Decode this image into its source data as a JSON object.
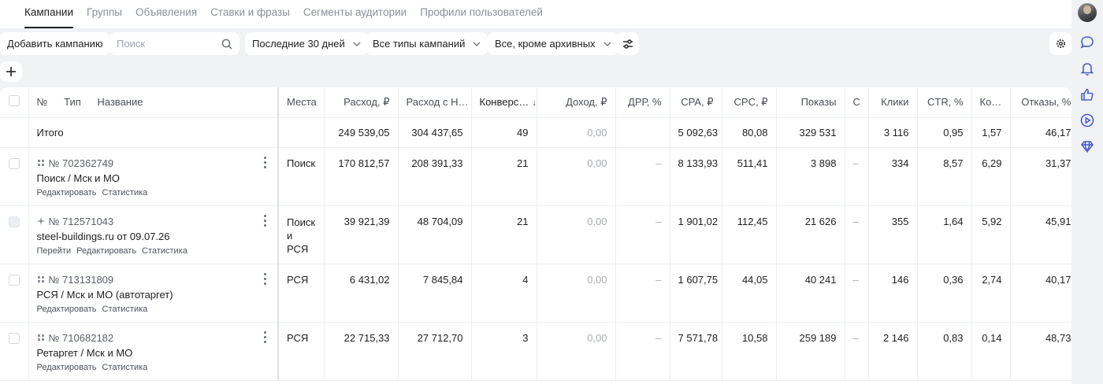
{
  "tabs": [
    {
      "label": "Кампании",
      "active": true
    },
    {
      "label": "Группы",
      "active": false
    },
    {
      "label": "Объявления",
      "active": false
    },
    {
      "label": "Ставки и фразы",
      "active": false
    },
    {
      "label": "Сегменты аудитории",
      "active": false
    },
    {
      "label": "Профили пользователей",
      "active": false
    }
  ],
  "toolbar": {
    "add_campaign": "Добавить кампанию",
    "search_placeholder": "Поиск",
    "period": "Последние 30 дней",
    "campaign_types": "Все типы кампаний",
    "archive_filter": "Все, кроме архивных"
  },
  "columns": {
    "number": "№",
    "type": "Тип",
    "name": "Название",
    "places": "Места",
    "spend": "Расход, ₽",
    "spend_vat": "Расход с Н…",
    "conversions": "Конверс…",
    "revenue": "Доход, ₽",
    "drr": "ДРР, %",
    "cpa": "CPA, ₽",
    "cpc": "CPC, ₽",
    "impressions": "Показы",
    "c": "С",
    "clicks": "Клики",
    "ctr": "CTR, %",
    "ko": "Ко…",
    "bounces": "Отказы, %"
  },
  "total": {
    "label": "Итого",
    "spend": "249 539,05",
    "spend_vat": "304 437,65",
    "conversions": "49",
    "revenue": "0,00",
    "drr": "",
    "cpa": "5 092,63",
    "cpc": "80,08",
    "impressions": "329 531",
    "c": "",
    "clicks": "3 116",
    "ctr": "0,95",
    "ko": "1,57",
    "bounces": "46,17"
  },
  "campaigns": [
    {
      "id": "№ 702362749",
      "name": "Поиск / Мск и МО",
      "links": [
        "Редактировать",
        "Статистика"
      ],
      "places": "Поиск",
      "spend": "170 812,57",
      "spend_vat": "208 391,33",
      "conversions": "21",
      "revenue": "0,00",
      "drr": "–",
      "cpa": "8 133,93",
      "cpc": "511,41",
      "impressions": "3 898",
      "c": "–",
      "clicks": "334",
      "ctr": "8,57",
      "ko": "6,29",
      "bounces": "31,37",
      "checkbox_disabled": false,
      "kebab": true
    },
    {
      "id": "№ 712571043",
      "name": "steel-buildings.ru от 09.07.26",
      "links": [
        "Перейти",
        "Редактировать",
        "Статистика"
      ],
      "places": "Поиск и РСЯ",
      "spend": "39 921,39",
      "spend_vat": "48 704,09",
      "conversions": "21",
      "revenue": "0,00",
      "drr": "–",
      "cpa": "1 901,02",
      "cpc": "112,45",
      "impressions": "21 626",
      "c": "–",
      "clicks": "355",
      "ctr": "1,64",
      "ko": "5,92",
      "bounces": "45,91",
      "checkbox_disabled": true,
      "kebab": true
    },
    {
      "id": "№ 713131809",
      "name": "РСЯ / Мск и МО (автотаргет)",
      "links": [
        "Редактировать",
        "Статистика"
      ],
      "places": "РСЯ",
      "spend": "6 431,02",
      "spend_vat": "7 845,84",
      "conversions": "4",
      "revenue": "0,00",
      "drr": "–",
      "cpa": "1 607,75",
      "cpc": "44,05",
      "impressions": "40 241",
      "c": "–",
      "clicks": "146",
      "ctr": "0,36",
      "ko": "2,74",
      "bounces": "40,17",
      "checkbox_disabled": false,
      "kebab": true
    },
    {
      "id": "№ 710682182",
      "name": "Ретаргет / Мск и МО",
      "links": [
        "Редактировать",
        "Статистика"
      ],
      "places": "РСЯ",
      "spend": "22 715,33",
      "spend_vat": "27 712,70",
      "conversions": "3",
      "revenue": "0,00",
      "drr": "–",
      "cpa": "7 571,78",
      "cpc": "10,58",
      "impressions": "259 189",
      "c": "–",
      "clicks": "2 146",
      "ctr": "0,83",
      "ko": "0,14",
      "bounces": "48,73",
      "checkbox_disabled": false,
      "kebab": true
    }
  ],
  "icons": {
    "sidebar": [
      "avatar",
      "chat-icon",
      "bell-icon",
      "thumbs-up-icon",
      "play-icon",
      "diamond-icon"
    ],
    "accent": "#4a5fc1"
  }
}
